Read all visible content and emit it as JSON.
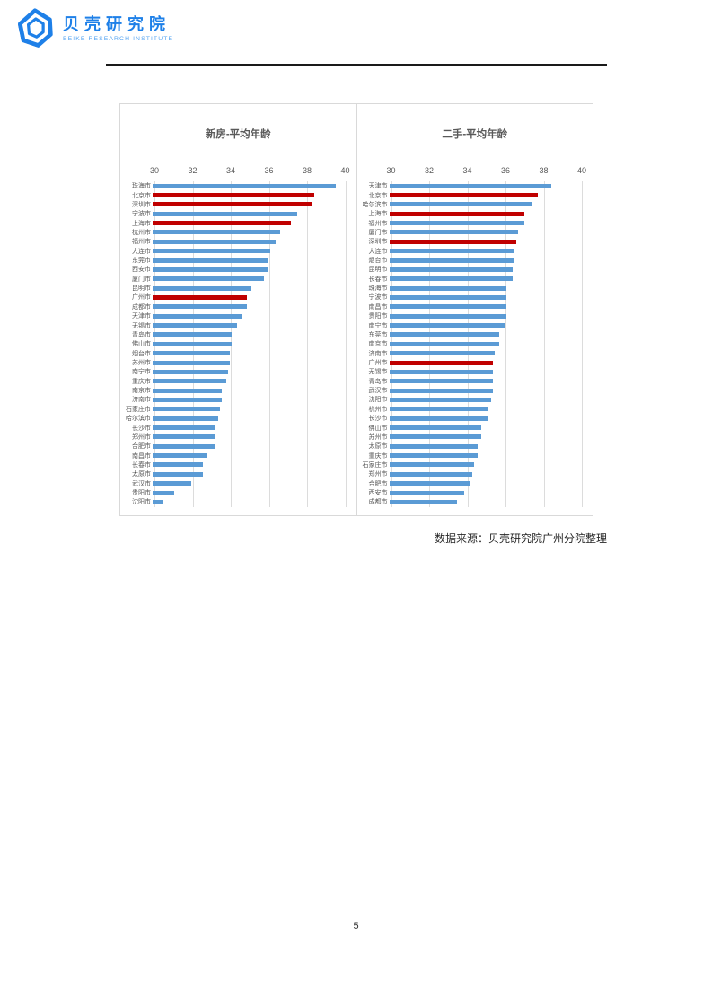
{
  "header": {
    "logo_cn": "贝壳研究院",
    "logo_en": "BEIKE RESEARCH INSTITUTE"
  },
  "colors": {
    "bar_blue": "#5B9BD5",
    "bar_red": "#C00000",
    "logo_blue": "#1E80E8",
    "logo_blue_dark": "#1565C8",
    "grid": "#DCDCDC",
    "axis_text": "#595959"
  },
  "chart_data": [
    {
      "type": "bar",
      "orientation": "horizontal",
      "title": "新房-平均年龄",
      "xlabel": "",
      "ylabel": "",
      "xlim": [
        30,
        40
      ],
      "xticks": [
        30,
        32,
        34,
        36,
        38,
        40
      ],
      "grid": true,
      "legend": false,
      "categories": [
        "珠海市",
        "北京市",
        "深圳市",
        "宁波市",
        "上海市",
        "杭州市",
        "福州市",
        "大连市",
        "东莞市",
        "西安市",
        "厦门市",
        "昆明市",
        "广州市",
        "成都市",
        "天津市",
        "无锡市",
        "青岛市",
        "佛山市",
        "烟台市",
        "苏州市",
        "南宁市",
        "重庆市",
        "南京市",
        "济南市",
        "石家庄市",
        "哈尔滨市",
        "长沙市",
        "郑州市",
        "合肥市",
        "南昌市",
        "长春市",
        "太原市",
        "武汉市",
        "贵阳市",
        "沈阳市"
      ],
      "values": [
        39.5,
        38.4,
        38.3,
        37.5,
        37.2,
        36.6,
        36.4,
        36.1,
        36.0,
        36.0,
        35.8,
        35.1,
        34.9,
        34.9,
        34.6,
        34.4,
        34.1,
        34.1,
        34.0,
        34.0,
        33.9,
        33.8,
        33.6,
        33.6,
        33.5,
        33.4,
        33.2,
        33.2,
        33.2,
        32.8,
        32.6,
        32.6,
        32.0,
        31.1,
        30.5
      ],
      "red_indices": [
        1,
        2,
        4,
        12
      ]
    },
    {
      "type": "bar",
      "orientation": "horizontal",
      "title": "二手-平均年龄",
      "xlabel": "",
      "ylabel": "",
      "xlim": [
        30,
        40
      ],
      "xticks": [
        30,
        32,
        34,
        36,
        38,
        40
      ],
      "grid": true,
      "legend": false,
      "categories": [
        "天津市",
        "北京市",
        "哈尔滨市",
        "上海市",
        "福州市",
        "厦门市",
        "深圳市",
        "大连市",
        "烟台市",
        "昆明市",
        "长春市",
        "珠海市",
        "宁波市",
        "南昌市",
        "贵阳市",
        "南宁市",
        "东莞市",
        "南京市",
        "济南市",
        "广州市",
        "无锡市",
        "青岛市",
        "武汉市",
        "沈阳市",
        "杭州市",
        "长沙市",
        "佛山市",
        "苏州市",
        "太原市",
        "重庆市",
        "石家庄市",
        "郑州市",
        "合肥市",
        "西安市",
        "成都市"
      ],
      "values": [
        38.4,
        37.7,
        37.4,
        37.0,
        37.0,
        36.7,
        36.6,
        36.5,
        36.5,
        36.4,
        36.4,
        36.1,
        36.1,
        36.1,
        36.1,
        36.0,
        35.7,
        35.7,
        35.5,
        35.4,
        35.4,
        35.4,
        35.4,
        35.3,
        35.1,
        35.1,
        34.8,
        34.8,
        34.6,
        34.6,
        34.4,
        34.3,
        34.2,
        33.9,
        33.5
      ],
      "red_indices": [
        1,
        3,
        6,
        19
      ]
    }
  ],
  "source_note": "数据来源：贝壳研究院广州分院整理",
  "page_number": "5"
}
